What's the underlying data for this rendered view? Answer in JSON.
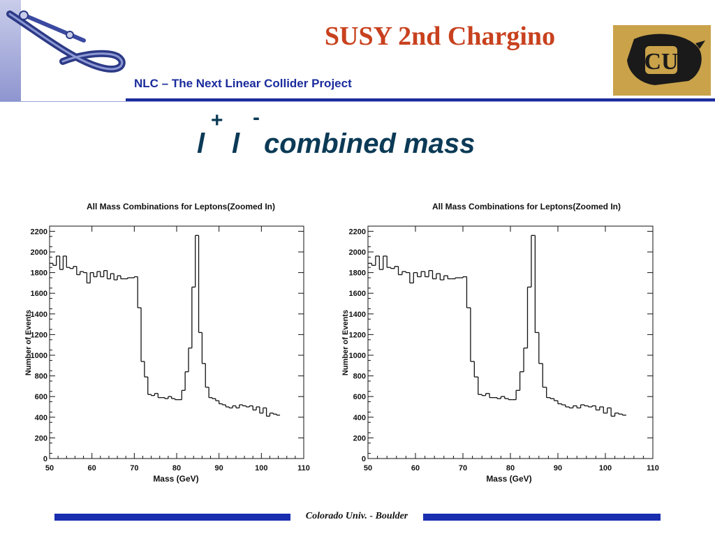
{
  "header": {
    "title": "SUSY 2nd Chargino",
    "subtitle": "NLC – The Next Linear Collider Project"
  },
  "heading": {
    "l1": "l",
    "plus": "+",
    "l2": "l",
    "minus": "-",
    "text": "combined  mass"
  },
  "footer": {
    "text": "Colorado Univ. - Boulder"
  },
  "logos": {
    "cu": "CU",
    "cu_background": "#c9a24a"
  },
  "colors": {
    "title": "#c8411e",
    "subtitle": "#1a2b9c",
    "heading": "#0b3a56",
    "rule": "#1a2eb0"
  },
  "chart_data": [
    {
      "type": "bar",
      "title": "All Mass Combinations for Leptons(Zoomed In)",
      "xlabel": "Mass (GeV)",
      "ylabel": "Number of Events",
      "xlim": [
        50,
        110
      ],
      "ylim": [
        0,
        2250
      ],
      "xticks": [
        50,
        60,
        70,
        80,
        90,
        100,
        110
      ],
      "yticks": [
        0,
        200,
        400,
        600,
        800,
        1000,
        1200,
        1400,
        1600,
        1800,
        2000,
        2200
      ],
      "bin_edges_start": 50,
      "bin_width": 0.8,
      "values": [
        1890,
        1870,
        1960,
        1830,
        1960,
        1850,
        1840,
        1860,
        1780,
        1810,
        1800,
        1700,
        1800,
        1760,
        1810,
        1760,
        1820,
        1740,
        1790,
        1730,
        1770,
        1740,
        1740,
        1750,
        1750,
        1760,
        1460,
        940,
        790,
        620,
        610,
        630,
        590,
        590,
        580,
        600,
        580,
        570,
        570,
        660,
        840,
        1070,
        1660,
        2160,
        1220,
        920,
        690,
        590,
        580,
        560,
        530,
        520,
        500,
        490,
        510,
        490,
        520,
        510,
        500,
        510,
        470,
        500,
        440,
        490,
        410,
        440,
        430,
        420
      ],
      "grid": false,
      "legend": "none"
    },
    {
      "type": "bar",
      "title": "All Mass Combinations for Leptons(Zoomed In)",
      "xlabel": "Mass (GeV)",
      "ylabel": "Number of Events",
      "xlim": [
        50,
        110
      ],
      "ylim": [
        0,
        2250
      ],
      "xticks": [
        50,
        60,
        70,
        80,
        90,
        100,
        110
      ],
      "yticks": [
        0,
        200,
        400,
        600,
        800,
        1000,
        1200,
        1400,
        1600,
        1800,
        2000,
        2200
      ],
      "bin_edges_start": 50,
      "bin_width": 0.8,
      "values": [
        1890,
        1870,
        1960,
        1830,
        1960,
        1850,
        1840,
        1860,
        1780,
        1810,
        1800,
        1700,
        1800,
        1760,
        1810,
        1760,
        1820,
        1740,
        1790,
        1730,
        1770,
        1740,
        1740,
        1750,
        1750,
        1760,
        1460,
        940,
        790,
        620,
        610,
        630,
        590,
        590,
        580,
        600,
        580,
        570,
        570,
        660,
        840,
        1070,
        1660,
        2160,
        1220,
        920,
        690,
        590,
        580,
        560,
        530,
        520,
        500,
        490,
        510,
        490,
        520,
        510,
        500,
        510,
        470,
        500,
        440,
        490,
        410,
        440,
        430,
        420
      ],
      "grid": false,
      "legend": "none"
    }
  ]
}
